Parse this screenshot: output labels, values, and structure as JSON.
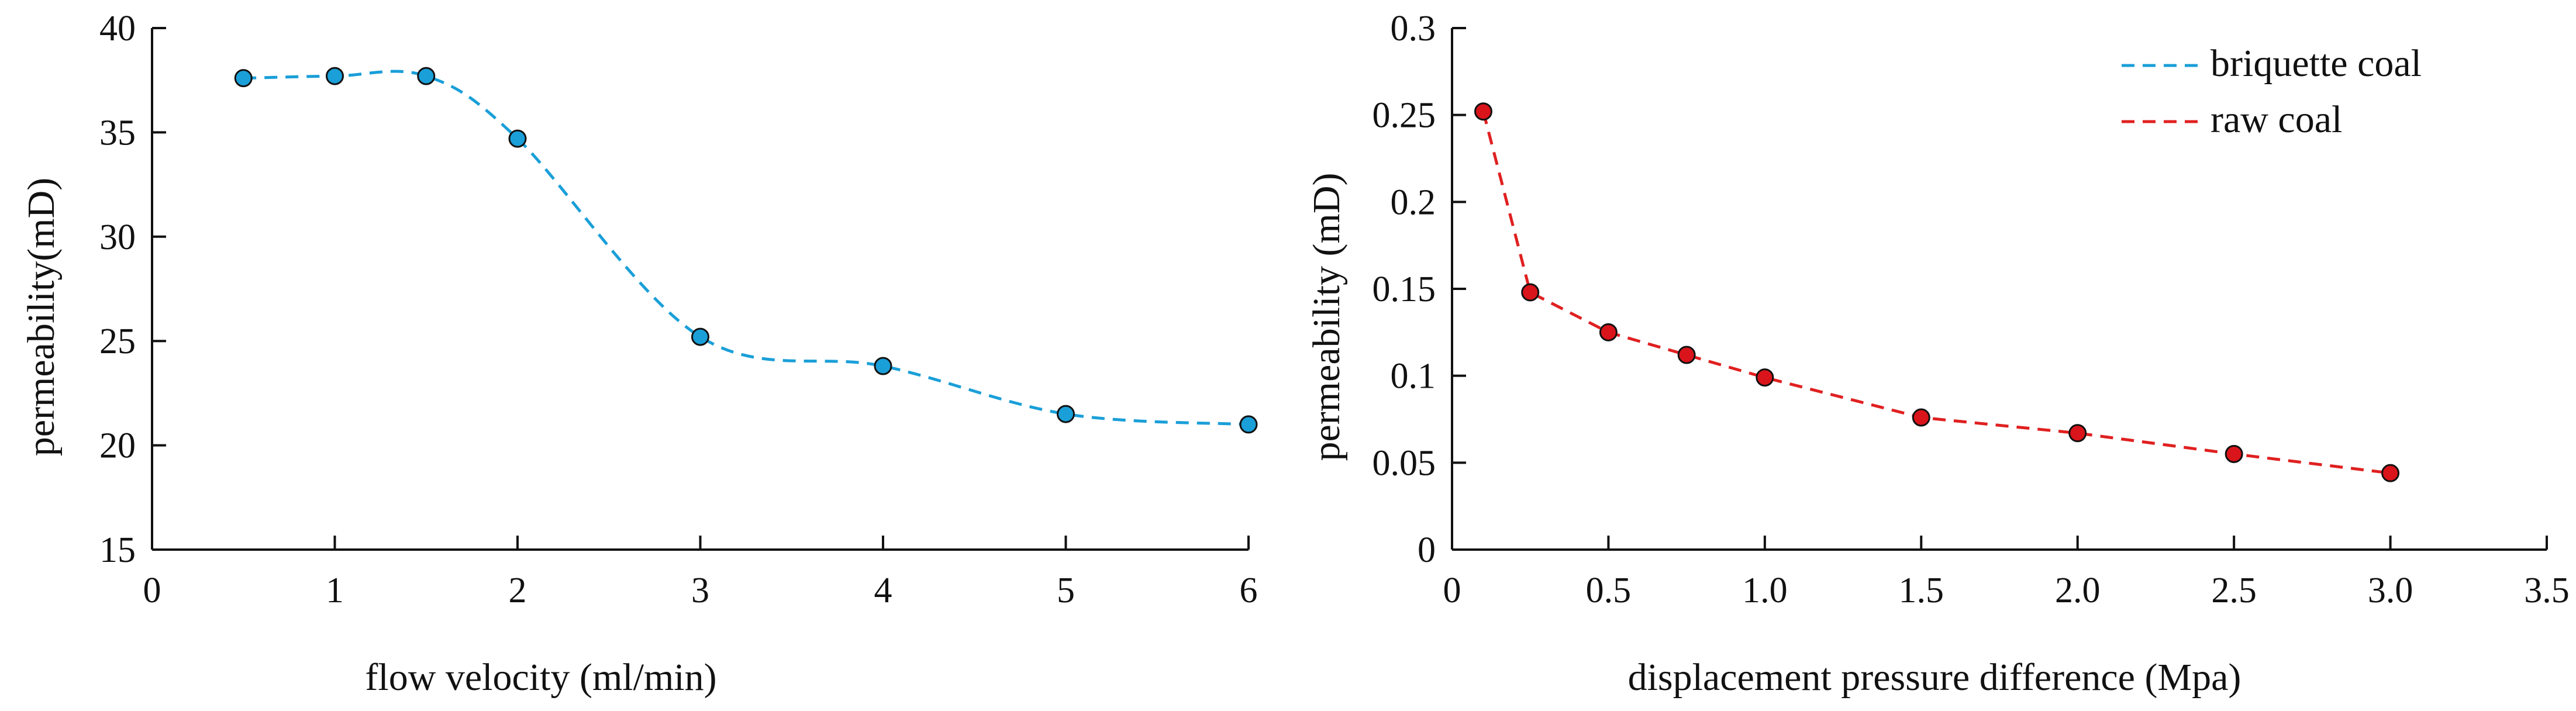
{
  "chart_data": [
    {
      "type": "line",
      "xlabel": "flow velocity (ml/min)",
      "ylabel": "permeability(mD)",
      "xlim": [
        0,
        6
      ],
      "ylim": [
        15,
        40
      ],
      "xticks": [
        "0",
        "1",
        "2",
        "3",
        "4",
        "5",
        "6"
      ],
      "yticks": [
        "15",
        "20",
        "25",
        "30",
        "35",
        "40"
      ],
      "grid": false,
      "series": [
        {
          "name": "briquette coal",
          "color": "#1a9fd8",
          "marker_color": "#1a9fd8",
          "line_style": "dashed",
          "x": [
            0.5,
            1,
            1.5,
            2,
            3,
            4,
            5,
            6
          ],
          "y": [
            37.6,
            37.7,
            37.7,
            34.7,
            25.2,
            23.8,
            21.5,
            21.0
          ]
        }
      ]
    },
    {
      "type": "line",
      "xlabel": "displacement pressure difference (Mpa)",
      "ylabel": "permeability (mD)",
      "xlim": [
        0,
        3.5
      ],
      "ylim": [
        0,
        0.3
      ],
      "xticks": [
        "0",
        "0.5",
        "1.0",
        "1.5",
        "2.0",
        "2.5",
        "3.0",
        "3.5"
      ],
      "yticks": [
        "0",
        "0.05",
        "0.1",
        "0.15",
        "0.2",
        "0.25",
        "0.3"
      ],
      "grid": false,
      "legend_position": "top-right",
      "series": [
        {
          "name": "raw coal",
          "color": "#e02020",
          "marker_color": "#d9141b",
          "line_style": "dashed",
          "x": [
            0.1,
            0.25,
            0.5,
            0.75,
            1.0,
            1.5,
            2.0,
            2.5,
            3.0
          ],
          "y": [
            0.252,
            0.148,
            0.125,
            0.112,
            0.099,
            0.076,
            0.067,
            0.055,
            0.044
          ]
        }
      ]
    }
  ],
  "legend": {
    "items": [
      {
        "label": "briquette coal",
        "color": "#1a9fd8"
      },
      {
        "label": "raw coal",
        "color": "#e02020"
      }
    ]
  }
}
